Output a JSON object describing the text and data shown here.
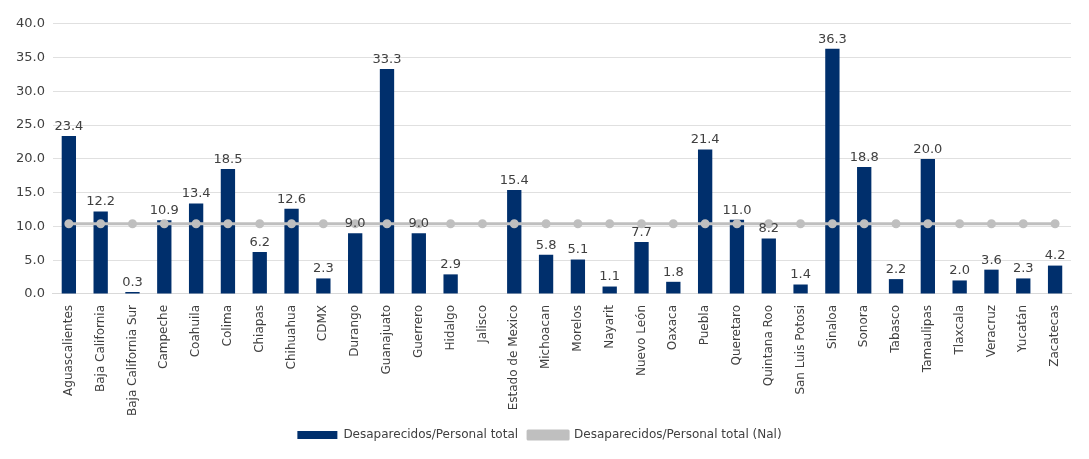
{
  "chart_data": {
    "type": "bar",
    "categories": [
      "Aguascalientes",
      "Baja California",
      "Baja California Sur",
      "Campeche",
      "Coahuila",
      "Colima",
      "Chiapas",
      "Chihuahua",
      "CDMX",
      "Durango",
      "Guanajuato",
      "Guerrero",
      "Hidalgo",
      "Jalisco",
      "Estado de Mexico",
      "Michoacan",
      "Morelos",
      "Nayarit",
      "Nuevo León",
      "Oaxaca",
      "Puebla",
      "Queretaro",
      "Quintana Roo",
      "San Luis Potosi",
      "Sinaloa",
      "Sonora",
      "Tabasco",
      "Tamaulipas",
      "Tlaxcala",
      "Veracruz",
      "Yucatán",
      "Zacatecas"
    ],
    "series": [
      {
        "name": "Desaparecidos/Personal total",
        "color": "#002f6c",
        "values": [
          23.4,
          12.2,
          0.3,
          10.9,
          13.4,
          18.5,
          6.2,
          12.6,
          2.3,
          9.0,
          33.3,
          9.0,
          2.9,
          null,
          15.4,
          5.8,
          5.1,
          1.1,
          7.7,
          1.8,
          21.4,
          11.0,
          8.2,
          1.4,
          36.3,
          18.8,
          2.2,
          20.0,
          2.0,
          3.6,
          2.3,
          4.2
        ],
        "value_labels": [
          "23.4",
          "12.2",
          "0.3",
          "10.9",
          "13.4",
          "18.5",
          "6.2",
          "12.6",
          "2.3",
          "9.0",
          "33.3",
          "9.0",
          "2.9",
          null,
          "15.4",
          "5.8",
          "5.1",
          "1.1",
          "7.7",
          "1.8",
          "21.4",
          "11.0",
          "8.2",
          "1.4",
          "36.3",
          "18.8",
          "2.2",
          "20.0",
          "2.0",
          "3.6",
          "2.3",
          "4.2"
        ]
      },
      {
        "name": "Desaparecidos/Personal total (Nal)",
        "type": "line",
        "color": "#bfbfbf",
        "marker": "circle",
        "values": [
          10.4,
          10.4,
          10.4,
          10.4,
          10.4,
          10.4,
          10.4,
          10.4,
          10.4,
          10.4,
          10.4,
          10.4,
          10.4,
          10.4,
          10.4,
          10.4,
          10.4,
          10.4,
          10.4,
          10.4,
          10.4,
          10.4,
          10.4,
          10.4,
          10.4,
          10.4,
          10.4,
          10.4,
          10.4,
          10.4,
          10.4,
          10.4
        ]
      }
    ],
    "ylim": [
      0,
      40
    ],
    "yticks": [
      {
        "value": 0,
        "label": "0.0"
      },
      {
        "value": 5,
        "label": "5.0"
      },
      {
        "value": 10,
        "label": "10.0"
      },
      {
        "value": 15,
        "label": "15.0"
      },
      {
        "value": 20,
        "label": "20.0"
      },
      {
        "value": 25,
        "label": "25.0"
      },
      {
        "value": 30,
        "label": "30.0"
      },
      {
        "value": 35,
        "label": "35.0"
      },
      {
        "value": 40,
        "label": "40.0"
      }
    ],
    "grid": "y",
    "legend": "bottom"
  }
}
